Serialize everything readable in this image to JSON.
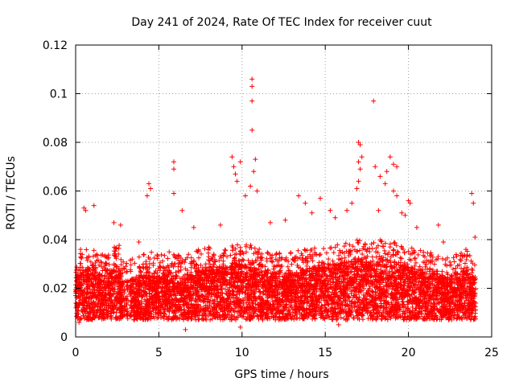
{
  "chart_data": {
    "type": "scatter",
    "title": "Day 241 of 2024, Rate Of TEC Index for receiver cuut",
    "xlabel": "GPS time / hours",
    "ylabel": "ROTI / TECUs",
    "xlim": [
      0,
      25
    ],
    "ylim": [
      0,
      0.12
    ],
    "xticks": [
      0,
      5,
      10,
      15,
      20,
      25
    ],
    "xtick_labels": [
      "0",
      "5",
      "10",
      "15",
      "20",
      "25"
    ],
    "yticks": [
      0,
      0.02,
      0.04,
      0.06,
      0.08,
      0.1,
      0.12
    ],
    "ytick_labels": [
      "0",
      "0.02",
      "0.04",
      "0.06",
      "0.08",
      "0.1",
      "0.12"
    ],
    "grid": true,
    "marker": "+",
    "color": "#ff0000",
    "series": [
      {
        "name": "ROTI",
        "points": [
          [
            0.0,
            0.016
          ],
          [
            0.5,
            0.018
          ],
          [
            1.0,
            0.019
          ],
          [
            1.5,
            0.017
          ],
          [
            2.0,
            0.018
          ],
          [
            2.5,
            0.02
          ],
          [
            2.9,
            0.014
          ],
          [
            3.5,
            0.015
          ],
          [
            4.0,
            0.016
          ],
          [
            4.5,
            0.017
          ],
          [
            5.0,
            0.016
          ],
          [
            5.5,
            0.017
          ],
          [
            6.0,
            0.016
          ],
          [
            6.5,
            0.015
          ],
          [
            7.0,
            0.016
          ],
          [
            7.5,
            0.018
          ],
          [
            8.0,
            0.019
          ],
          [
            8.5,
            0.018
          ],
          [
            9.0,
            0.019
          ],
          [
            9.5,
            0.02
          ],
          [
            10.0,
            0.02
          ],
          [
            10.5,
            0.021
          ],
          [
            11.0,
            0.02
          ],
          [
            11.5,
            0.018
          ],
          [
            12.0,
            0.017
          ],
          [
            12.5,
            0.016
          ],
          [
            13.0,
            0.017
          ],
          [
            13.5,
            0.018
          ],
          [
            14.0,
            0.018
          ],
          [
            14.5,
            0.019
          ],
          [
            15.0,
            0.019
          ],
          [
            15.5,
            0.02
          ],
          [
            16.0,
            0.021
          ],
          [
            16.5,
            0.021
          ],
          [
            17.0,
            0.022
          ],
          [
            17.5,
            0.021
          ],
          [
            18.0,
            0.021
          ],
          [
            18.5,
            0.022
          ],
          [
            19.0,
            0.021
          ],
          [
            19.5,
            0.02
          ],
          [
            20.0,
            0.019
          ],
          [
            20.5,
            0.018
          ],
          [
            21.0,
            0.017
          ],
          [
            21.5,
            0.017
          ],
          [
            22.0,
            0.016
          ],
          [
            22.5,
            0.016
          ],
          [
            23.0,
            0.017
          ],
          [
            23.5,
            0.018
          ],
          [
            24.0,
            0.016
          ],
          [
            0.5,
            0.053
          ],
          [
            0.6,
            0.052
          ],
          [
            1.1,
            0.054
          ],
          [
            2.3,
            0.047
          ],
          [
            2.7,
            0.046
          ],
          [
            4.4,
            0.063
          ],
          [
            4.5,
            0.061
          ],
          [
            4.3,
            0.058
          ],
          [
            5.9,
            0.072
          ],
          [
            5.9,
            0.069
          ],
          [
            5.9,
            0.059
          ],
          [
            6.4,
            0.052
          ],
          [
            9.4,
            0.074
          ],
          [
            9.5,
            0.07
          ],
          [
            9.6,
            0.067
          ],
          [
            9.9,
            0.072
          ],
          [
            9.7,
            0.064
          ],
          [
            10.6,
            0.106
          ],
          [
            10.6,
            0.103
          ],
          [
            10.6,
            0.097
          ],
          [
            10.6,
            0.085
          ],
          [
            10.8,
            0.073
          ],
          [
            10.7,
            0.068
          ],
          [
            10.5,
            0.062
          ],
          [
            10.9,
            0.06
          ],
          [
            10.2,
            0.058
          ],
          [
            13.4,
            0.058
          ],
          [
            13.8,
            0.055
          ],
          [
            14.7,
            0.057
          ],
          [
            15.3,
            0.052
          ],
          [
            16.3,
            0.052
          ],
          [
            17.0,
            0.08
          ],
          [
            17.1,
            0.079
          ],
          [
            17.2,
            0.074
          ],
          [
            17.0,
            0.072
          ],
          [
            17.1,
            0.069
          ],
          [
            17.0,
            0.064
          ],
          [
            16.9,
            0.061
          ],
          [
            17.9,
            0.097
          ],
          [
            18.0,
            0.07
          ],
          [
            18.3,
            0.066
          ],
          [
            18.6,
            0.063
          ],
          [
            18.9,
            0.074
          ],
          [
            19.1,
            0.071
          ],
          [
            19.3,
            0.07
          ],
          [
            18.7,
            0.068
          ],
          [
            19.1,
            0.06
          ],
          [
            19.3,
            0.058
          ],
          [
            18.2,
            0.052
          ],
          [
            19.8,
            0.05
          ],
          [
            20.0,
            0.056
          ],
          [
            20.1,
            0.055
          ],
          [
            20.5,
            0.045
          ],
          [
            21.8,
            0.046
          ],
          [
            23.8,
            0.059
          ],
          [
            23.9,
            0.055
          ],
          [
            24.0,
            0.041
          ],
          [
            22.1,
            0.039
          ],
          [
            12.6,
            0.048
          ],
          [
            15.6,
            0.049
          ],
          [
            3.8,
            0.039
          ],
          [
            7.1,
            0.045
          ],
          [
            8.7,
            0.046
          ],
          [
            11.7,
            0.047
          ],
          [
            14.2,
            0.051
          ],
          [
            16.6,
            0.055
          ],
          [
            19.6,
            0.051
          ],
          [
            6.6,
            0.003
          ],
          [
            9.9,
            0.004
          ],
          [
            15.8,
            0.005
          ],
          [
            0.2,
            0.006
          ]
        ]
      }
    ]
  }
}
